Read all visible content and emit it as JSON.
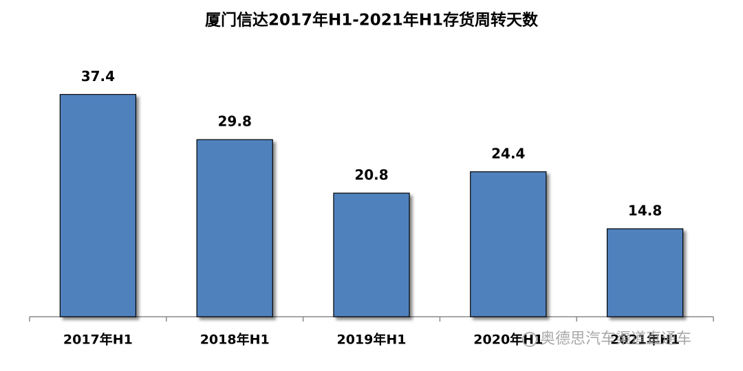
{
  "chart_data": {
    "type": "bar",
    "title": "厦门信达2017年H1-2021年H1存货周转天数",
    "categories": [
      "2017年H1",
      "2018年H1",
      "2019年H1",
      "2020年H1",
      "2021年H1"
    ],
    "values": [
      37.4,
      29.8,
      20.8,
      24.4,
      14.8
    ],
    "color": "#4f81bd",
    "ylim": [
      0,
      40
    ]
  },
  "watermark": "奥德思汽车渠道直通车"
}
